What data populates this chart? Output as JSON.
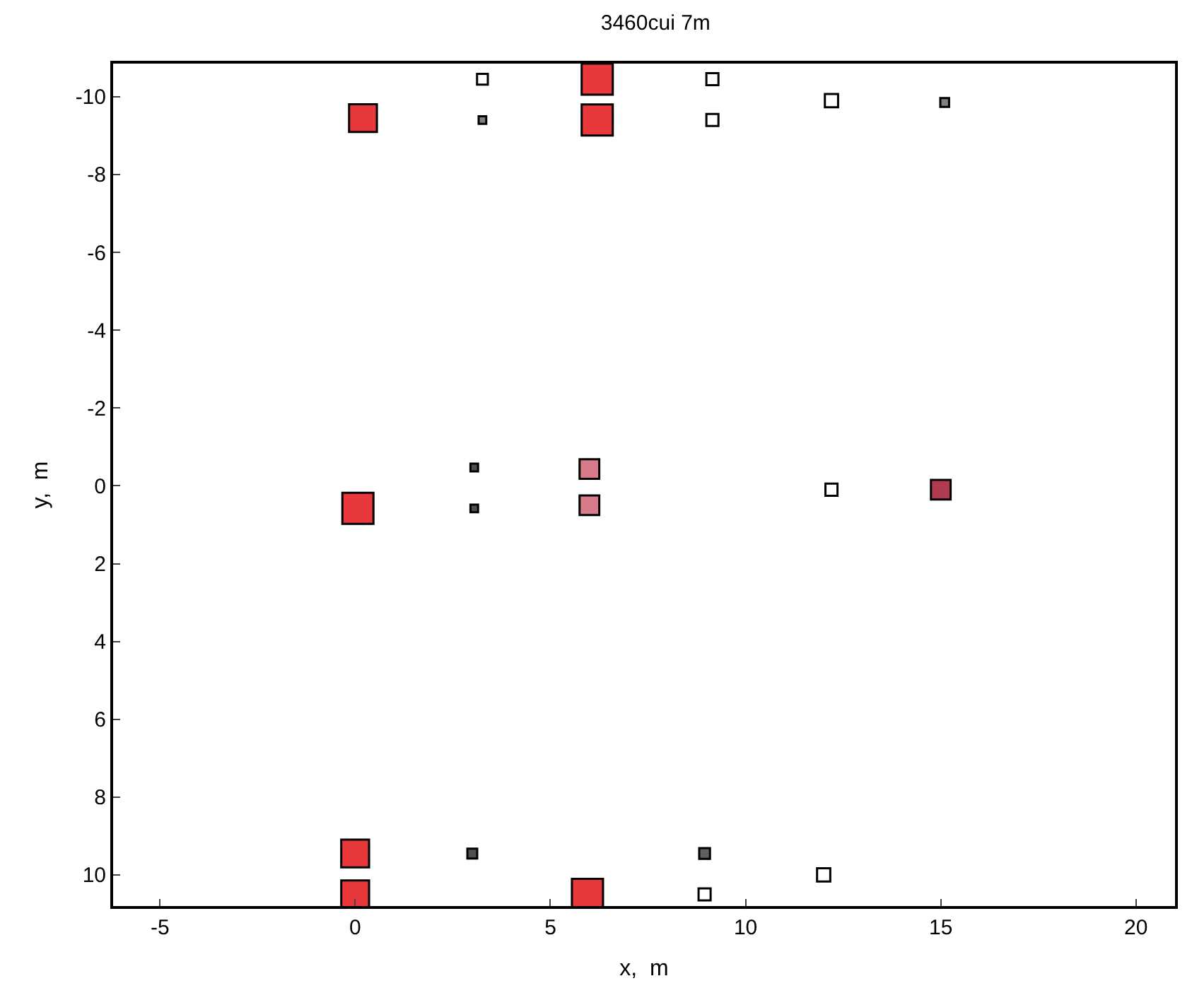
{
  "chart_data": {
    "type": "bubble",
    "title": "3460cui 7m",
    "xlabel": "x,  m",
    "ylabel": "y,  m",
    "x": [
      3.26,
      6.2,
      9.15,
      12.2,
      15.1,
      0.2,
      3.26,
      6.2,
      9.15,
      3.05,
      6.0,
      12.2,
      15.0,
      0.07,
      3.05,
      6.0,
      0.0,
      3.0,
      8.95,
      12.0,
      8.95,
      0.0,
      5.95
    ],
    "values": [
      -10.45,
      -10.45,
      -10.45,
      -9.9,
      -9.85,
      -9.45,
      -9.4,
      -9.4,
      -9.4,
      -0.47,
      -0.43,
      0.1,
      0.1,
      0.58,
      0.58,
      0.5,
      9.45,
      9.45,
      9.45,
      10.0,
      10.5,
      10.5,
      10.5
    ],
    "sizes": [
      0.12,
      1,
      0.15,
      0.18,
      0.08,
      0.8,
      0.06,
      1,
      0.15,
      0.06,
      0.4,
      0.15,
      0.4,
      1,
      0.06,
      0.4,
      0.8,
      0.1,
      0.12,
      0.18,
      0.15,
      0.8,
      1
    ],
    "colors": [
      "#ffffff",
      "#e8383c",
      "#ffffff",
      "#ffffff",
      "#808080",
      "#e8383c",
      "#808080",
      "#e8383c",
      "#ffffff",
      "#505050",
      "#d77a8a",
      "#ffffff",
      "#b03a50",
      "#e8383c",
      "#505050",
      "#d77a8a",
      "#e8383c",
      "#505050",
      "#606060",
      "#ffffff",
      "#ffffff",
      "#e8383c",
      "#e8383c"
    ],
    "marker": "square",
    "xlim": [
      -6.2,
      21
    ],
    "ylim": [
      10.8,
      -10.85
    ],
    "xticks": [
      -5,
      0,
      5,
      10,
      15,
      20
    ],
    "yticks": [
      -10,
      -8,
      -6,
      -4,
      -2,
      0,
      2,
      4,
      6,
      8,
      10
    ]
  }
}
